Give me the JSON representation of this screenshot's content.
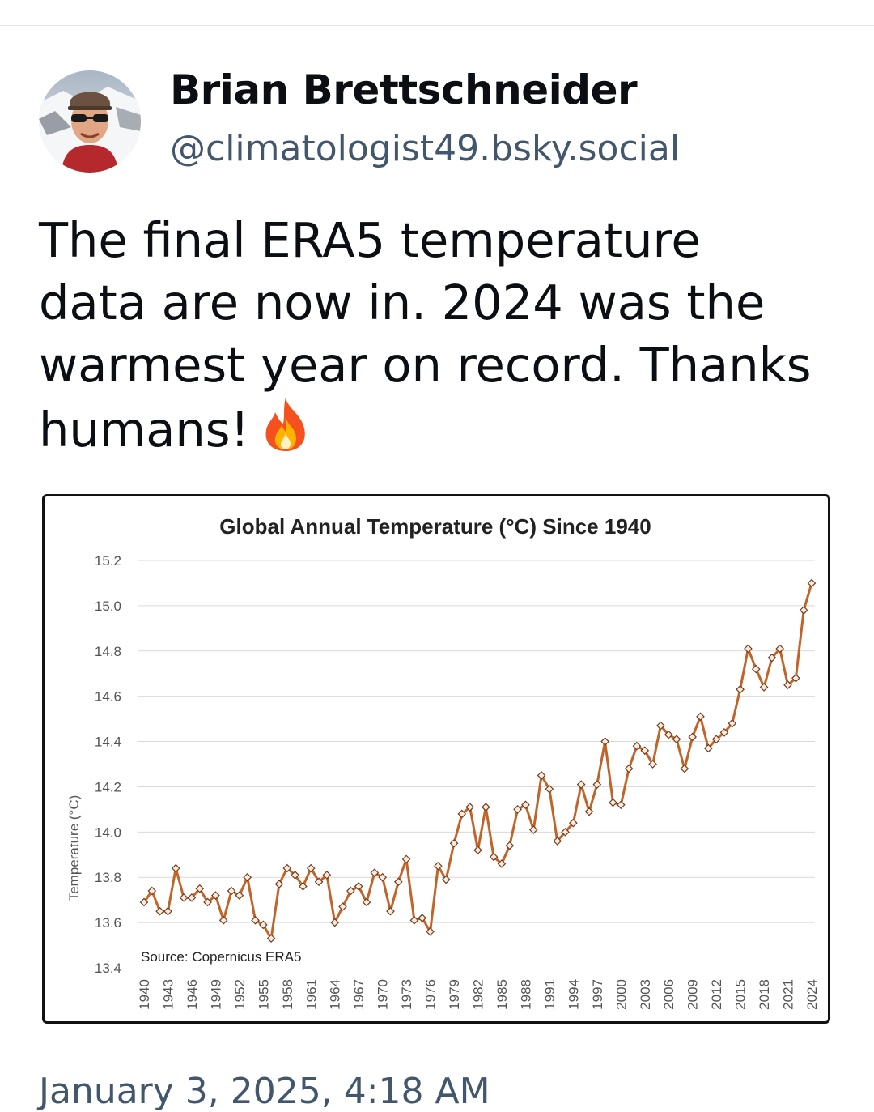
{
  "post": {
    "author": {
      "display_name": "Brian Brettschneider",
      "handle": "@climatologist49.bsky.social",
      "avatar_icon": "avatar-photo"
    },
    "text_lines": [
      "The final ERA5 temperature",
      "data are now in. 2024 was the",
      "warmest year on record. Thanks",
      "humans!"
    ],
    "emoji_icon": "fire-icon",
    "timestamp": "January 3, 2025, 4:18 AM"
  },
  "chart_data": {
    "type": "line",
    "title": "Global Annual Temperature (°C) Since 1940",
    "ylabel": "Temperature (°C)",
    "xlabel": "",
    "annotation": "Source: Copernicus ERA5",
    "ylim": [
      13.4,
      15.2
    ],
    "yticks": [
      "15.2",
      "15.0",
      "14.8",
      "14.6",
      "14.4",
      "14.2",
      "14.0",
      "13.8",
      "13.6",
      "13.4"
    ],
    "xtick_labels": [
      "1940",
      "1943",
      "1946",
      "1949",
      "1952",
      "1955",
      "1958",
      "1961",
      "1964",
      "1967",
      "1970",
      "1973",
      "1976",
      "1979",
      "1982",
      "1985",
      "1988",
      "1991",
      "1994",
      "1997",
      "2000",
      "2003",
      "2006",
      "2009",
      "2012",
      "2015",
      "2018",
      "2021",
      "2024"
    ],
    "grid": true,
    "line_color": "#c0642a",
    "marker_fill": "#f2ece4",
    "x": [
      1940,
      1941,
      1942,
      1943,
      1944,
      1945,
      1946,
      1947,
      1948,
      1949,
      1950,
      1951,
      1952,
      1953,
      1954,
      1955,
      1956,
      1957,
      1958,
      1959,
      1960,
      1961,
      1962,
      1963,
      1964,
      1965,
      1966,
      1967,
      1968,
      1969,
      1970,
      1971,
      1972,
      1973,
      1974,
      1975,
      1976,
      1977,
      1978,
      1979,
      1980,
      1981,
      1982,
      1983,
      1984,
      1985,
      1986,
      1987,
      1988,
      1989,
      1990,
      1991,
      1992,
      1993,
      1994,
      1995,
      1996,
      1997,
      1998,
      1999,
      2000,
      2001,
      2002,
      2003,
      2004,
      2005,
      2006,
      2007,
      2008,
      2009,
      2010,
      2011,
      2012,
      2013,
      2014,
      2015,
      2016,
      2017,
      2018,
      2019,
      2020,
      2021,
      2022,
      2023,
      2024
    ],
    "series": [
      {
        "values": [
          13.69,
          13.74,
          13.65,
          13.65,
          13.84,
          13.71,
          13.71,
          13.75,
          13.69,
          13.72,
          13.61,
          13.74,
          13.72,
          13.8,
          13.61,
          13.59,
          13.53,
          13.77,
          13.84,
          13.81,
          13.76,
          13.84,
          13.78,
          13.81,
          13.6,
          13.67,
          13.74,
          13.76,
          13.69,
          13.82,
          13.8,
          13.65,
          13.78,
          13.88,
          13.61,
          13.62,
          13.56,
          13.85,
          13.79,
          13.95,
          14.08,
          14.11,
          13.92,
          14.11,
          13.89,
          13.86,
          13.94,
          14.1,
          14.12,
          14.01,
          14.25,
          14.19,
          13.96,
          14.0,
          14.04,
          14.21,
          14.09,
          14.21,
          14.4,
          14.13,
          14.12,
          14.28,
          14.38,
          14.36,
          14.3,
          14.47,
          14.43,
          14.41,
          14.28,
          14.42,
          14.51,
          14.37,
          14.41,
          14.44,
          14.48,
          14.63,
          14.81,
          14.72,
          14.64,
          14.77,
          14.81,
          14.65,
          14.68,
          14.98,
          15.1
        ]
      }
    ]
  }
}
